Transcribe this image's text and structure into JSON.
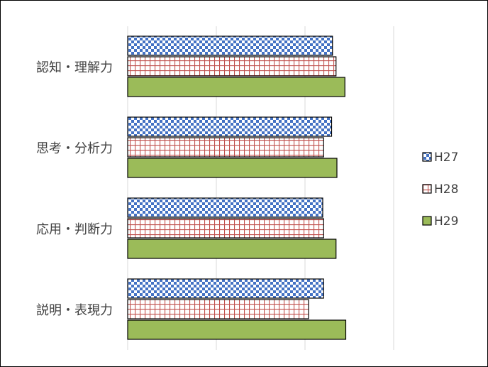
{
  "chart_data": {
    "type": "bar",
    "orientation": "horizontal",
    "categories": [
      "認知・理解力",
      "思考・分析力",
      "応用・判断力",
      "説明・表現力"
    ],
    "series": [
      {
        "name": "H27",
        "values": [
          2.31,
          2.3,
          2.2,
          2.21
        ],
        "fill": "checker",
        "color": "#4472C4"
      },
      {
        "name": "H28",
        "values": [
          2.35,
          2.21,
          2.21,
          2.04
        ],
        "fill": "grid",
        "color": "#C0504D"
      },
      {
        "name": "H29",
        "values": [
          2.45,
          2.36,
          2.35,
          2.46
        ],
        "fill": "solid",
        "color": "#9BBB59"
      }
    ],
    "xlim": [
      0,
      3
    ],
    "gridlines": [
      1,
      2,
      3
    ],
    "grid": true,
    "legend": "right",
    "title": "",
    "xlabel": "",
    "ylabel": ""
  }
}
